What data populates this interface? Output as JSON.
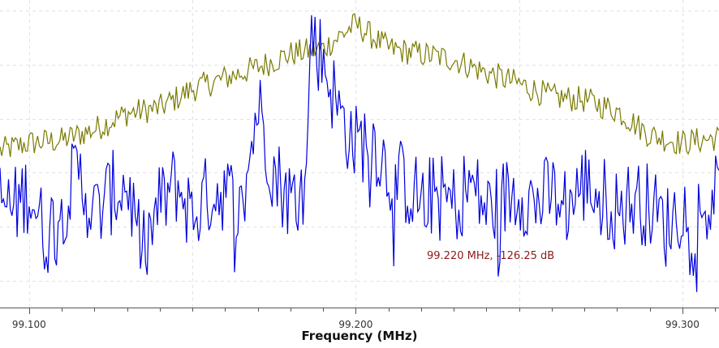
{
  "chart_data": {
    "type": "line",
    "title": "",
    "xlabel": "Frequency (MHz)",
    "ylabel": "",
    "xlim": [
      99.0911,
      99.3112
    ],
    "ylim": [
      -135,
      -78
    ],
    "x_ticks": [
      {
        "value": 99.1,
        "label": "99.100"
      },
      {
        "value": 99.2,
        "label": "99.200"
      },
      {
        "value": 99.3,
        "label": "99.300"
      }
    ],
    "grid": true,
    "legend": "none",
    "annotation": {
      "text": "99.220 MHz, -126.25 dB",
      "x": 99.22,
      "y": -126.25
    },
    "series": [
      {
        "color": "#7a7a00",
        "x": [
          99.091,
          99.1,
          99.11,
          99.12,
          99.13,
          99.14,
          99.15,
          99.16,
          99.17,
          99.18,
          99.19,
          99.2,
          99.21,
          99.22,
          99.23,
          99.24,
          99.25,
          99.26,
          99.27,
          99.28,
          99.29,
          99.3,
          99.311
        ],
        "values": [
          -106,
          -104.5,
          -104,
          -102,
          -99,
          -98,
          -94.5,
          -92.5,
          -90.5,
          -88,
          -87,
          -82.5,
          -87,
          -88,
          -89,
          -91.5,
          -93.5,
          -96,
          -96.5,
          -98.5,
          -103,
          -104.5,
          -103.5
        ]
      },
      {
        "color": "#0000dd",
        "x": [
          99.091,
          99.095,
          99.1,
          99.105,
          99.11,
          99.115,
          99.12,
          99.125,
          99.13,
          99.135,
          99.14,
          99.145,
          99.15,
          99.155,
          99.16,
          99.165,
          99.17,
          99.175,
          99.18,
          99.185,
          99.186,
          99.19,
          99.195,
          99.2,
          99.205,
          99.21,
          99.215,
          99.22,
          99.225,
          99.23,
          99.235,
          99.24,
          99.245,
          99.25,
          99.255,
          99.26,
          99.265,
          99.27,
          99.275,
          99.28,
          99.285,
          99.29,
          99.295,
          99.3,
          99.305,
          99.311
        ],
        "values": [
          -115,
          -117,
          -113,
          -122,
          -116,
          -110,
          -118,
          -114,
          -112,
          -125,
          -116,
          -112,
          -118,
          -114,
          -113,
          -118,
          -97,
          -110,
          -115,
          -112,
          -84,
          -89,
          -99,
          -105,
          -103,
          -110,
          -112,
          -115,
          -114,
          -116,
          -112,
          -117,
          -115,
          -113,
          -116,
          -114,
          -116,
          -112,
          -114,
          -117,
          -115,
          -116,
          -120,
          -116,
          -118,
          -114
        ]
      }
    ]
  }
}
